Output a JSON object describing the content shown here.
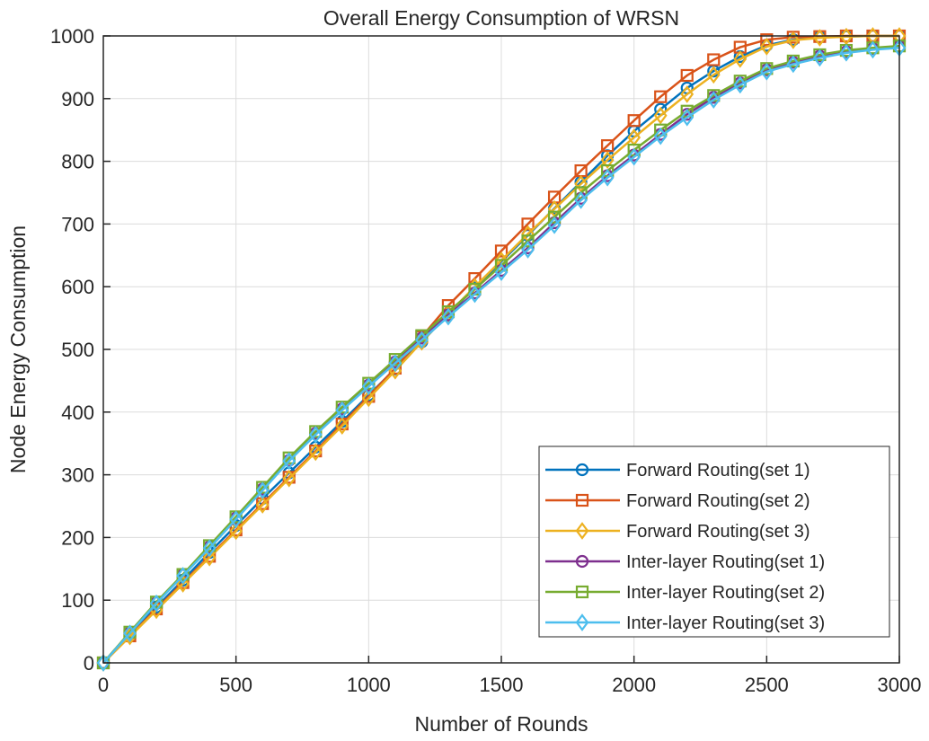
{
  "chart_data": {
    "type": "line",
    "title": "Overall Energy Consumption of WRSN",
    "xlabel": "Number of Rounds",
    "ylabel": "Node Energy Consumption",
    "xlim": [
      0,
      3000
    ],
    "ylim": [
      0,
      1000
    ],
    "xticks": [
      0,
      500,
      1000,
      1500,
      2000,
      2500,
      3000
    ],
    "yticks": [
      0,
      100,
      200,
      300,
      400,
      500,
      600,
      700,
      800,
      900,
      1000
    ],
    "grid": true,
    "legend_position": "bottom-right",
    "x": [
      0,
      100,
      200,
      300,
      400,
      500,
      600,
      700,
      800,
      900,
      1000,
      1100,
      1200,
      1300,
      1400,
      1500,
      1600,
      1700,
      1800,
      1900,
      2000,
      2100,
      2200,
      2300,
      2400,
      2500,
      2600,
      2700,
      2800,
      2900,
      3000
    ],
    "series": [
      {
        "name": "Forward Routing(set 1)",
        "color": "#0072BD",
        "marker": "circle",
        "values": [
          0,
          44,
          89,
          132,
          176,
          219,
          262,
          303,
          344,
          385,
          427,
          469,
          512,
          556,
          598,
          640,
          682,
          725,
          767,
          809,
          848,
          883,
          917,
          944,
          967,
          985,
          994,
          998,
          999,
          1000,
          1000
        ]
      },
      {
        "name": "Forward Routing(set 2)",
        "color": "#D95319",
        "marker": "square",
        "values": [
          0,
          43,
          86,
          128,
          170,
          212,
          254,
          296,
          338,
          381,
          425,
          470,
          520,
          570,
          613,
          657,
          700,
          743,
          785,
          825,
          865,
          903,
          937,
          962,
          982,
          994,
          998,
          999,
          1000,
          1000,
          1000
        ]
      },
      {
        "name": "Forward Routing(set 3)",
        "color": "#EDB120",
        "marker": "diamond",
        "values": [
          0,
          42,
          84,
          126,
          168,
          210,
          252,
          294,
          336,
          378,
          422,
          466,
          512,
          557,
          600,
          642,
          684,
          724,
          764,
          802,
          838,
          873,
          907,
          938,
          963,
          983,
          993,
          997,
          999,
          1000,
          1000
        ]
      },
      {
        "name": "Inter-layer Routing(set 1)",
        "color": "#7E2F8E",
        "marker": "circle",
        "values": [
          0,
          48,
          96,
          140,
          185,
          231,
          277,
          323,
          366,
          405,
          443,
          480,
          518,
          555,
          590,
          626,
          662,
          702,
          741,
          777,
          810,
          843,
          875,
          902,
          925,
          946,
          958,
          968,
          975,
          980,
          983
        ]
      },
      {
        "name": "Inter-layer Routing(set 2)",
        "color": "#77AC30",
        "marker": "square",
        "values": [
          0,
          49,
          97,
          141,
          187,
          233,
          280,
          327,
          369,
          408,
          446,
          484,
          522,
          560,
          596,
          634,
          673,
          711,
          750,
          785,
          818,
          850,
          880,
          905,
          928,
          948,
          960,
          970,
          977,
          981,
          984
        ]
      },
      {
        "name": "Inter-layer Routing(set 3)",
        "color": "#4DBEEE",
        "marker": "diamond",
        "values": [
          0,
          47,
          95,
          139,
          183,
          229,
          275,
          322,
          364,
          403,
          441,
          478,
          515,
          552,
          588,
          623,
          659,
          698,
          738,
          774,
          807,
          840,
          870,
          898,
          922,
          943,
          955,
          965,
          973,
          978,
          981
        ]
      }
    ]
  }
}
